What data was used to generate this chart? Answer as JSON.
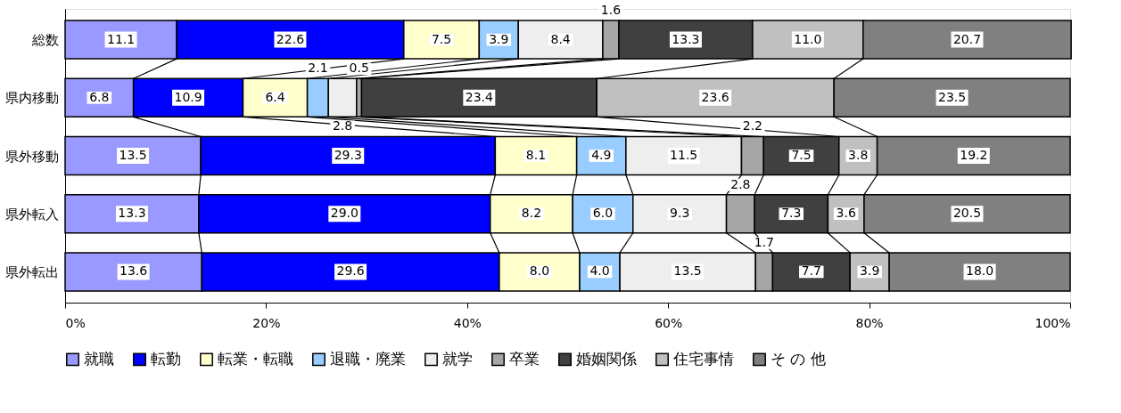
{
  "chart_data": {
    "type": "bar",
    "orientation": "horizontal",
    "stacked": true,
    "data_labels": true,
    "grid": false,
    "legend": "bottom",
    "categories": [
      "総数",
      "県内移動",
      "県外移動",
      "県外転入",
      "県外転出"
    ],
    "xlim": [
      0,
      100
    ],
    "xticks": [
      {
        "value": 0,
        "label": "0%"
      },
      {
        "value": 20,
        "label": "20%"
      },
      {
        "value": 40,
        "label": "40%"
      },
      {
        "value": 60,
        "label": "60%"
      },
      {
        "value": 80,
        "label": "80%"
      },
      {
        "value": 100,
        "label": "100%"
      }
    ],
    "series": [
      {
        "name": "就職",
        "color": "#9999ff",
        "values": [
          11.1,
          6.8,
          13.5,
          13.3,
          13.6
        ]
      },
      {
        "name": "転勤",
        "color": "#0000ff",
        "values": [
          22.6,
          10.9,
          29.3,
          29.0,
          29.6
        ],
        "value_labels": [
          "22.6",
          "10.9",
          "29.3",
          "29.0",
          "29.6"
        ]
      },
      {
        "name": "転業・転職",
        "color": "#ffffcc",
        "values": [
          7.5,
          6.4,
          8.1,
          8.2,
          8.0
        ],
        "value_labels": [
          "7.5",
          "6.4",
          "8.1",
          "8.2",
          "8.0"
        ]
      },
      {
        "name": "退職・廃業",
        "color": "#99ccff",
        "values": [
          3.9,
          2.1,
          4.9,
          6.0,
          4.0
        ],
        "value_labels": [
          "3.9",
          "2.1",
          "4.9",
          "6.0",
          "4.0"
        ]
      },
      {
        "name": "就学",
        "color": "#eeeeee",
        "values": [
          8.4,
          2.8,
          11.5,
          9.3,
          13.5
        ]
      },
      {
        "name": "卒業",
        "color": "#a6a6a6",
        "values": [
          1.6,
          0.5,
          2.2,
          2.8,
          1.7
        ]
      },
      {
        "name": "婚姻関係",
        "color": "#404040",
        "values": [
          13.3,
          23.4,
          7.5,
          7.3,
          7.7
        ]
      },
      {
        "name": "住宅事情",
        "color": "#c0c0c0",
        "values": [
          11.0,
          23.6,
          3.8,
          3.6,
          3.9
        ],
        "value_labels": [
          "11.0",
          "23.6",
          "3.8",
          "3.6",
          "3.9"
        ]
      },
      {
        "name": "そ の 他",
        "color": "#808080",
        "values": [
          20.7,
          23.5,
          19.2,
          20.5,
          18.0
        ],
        "value_labels": [
          "20.7",
          "23.5",
          "19.2",
          "20.5",
          "18.0"
        ]
      }
    ]
  }
}
